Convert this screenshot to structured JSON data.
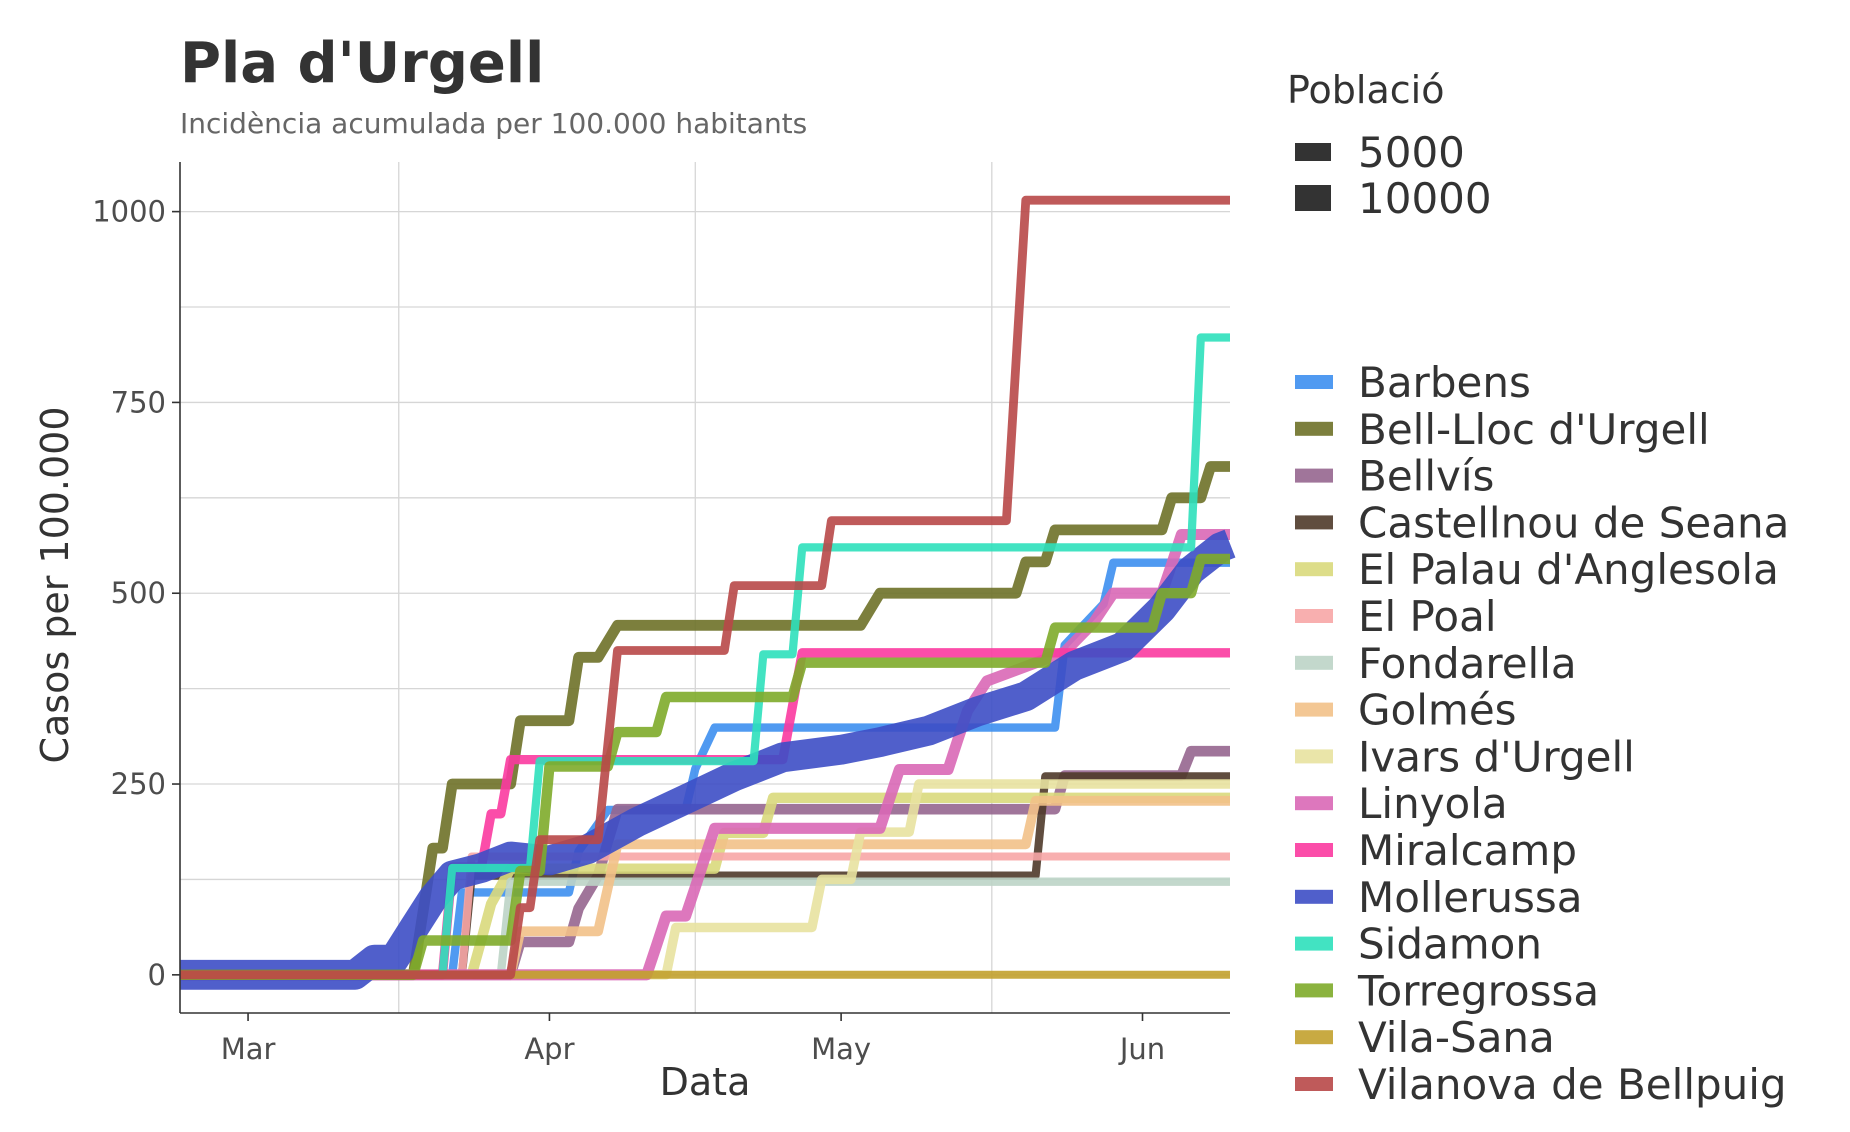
{
  "chart_data": {
    "type": "line",
    "title": "Pla d'Urgell",
    "subtitle": "Incidència acumulada per 100.000 habitants",
    "xlabel": "Data",
    "ylabel": "Casos per 100.000",
    "x_axis": {
      "type": "date",
      "range": [
        "2020-02-23",
        "2020-06-10"
      ],
      "ticks": [
        {
          "date": "2020-03-01",
          "label": "Mar"
        },
        {
          "date": "2020-04-01",
          "label": "Apr"
        },
        {
          "date": "2020-05-01",
          "label": "May"
        },
        {
          "date": "2020-06-01",
          "label": "Jun"
        }
      ]
    },
    "y_axis": {
      "range": [
        -50,
        1065
      ],
      "ticks": [
        0,
        250,
        500,
        750,
        1000
      ]
    },
    "grid": true,
    "size_legend": {
      "title": "Població",
      "entries": [
        "5000",
        "10000"
      ]
    },
    "legend_position": "right",
    "series": [
      {
        "name": "Barbens",
        "color": "#3d8ff0",
        "population": 870,
        "points": [
          [
            "2020-02-23",
            0
          ],
          [
            "2020-03-22",
            0
          ],
          [
            "2020-03-23",
            108
          ],
          [
            "2020-04-03",
            108
          ],
          [
            "2020-04-04",
            162
          ],
          [
            "2020-04-07",
            216
          ],
          [
            "2020-04-15",
            216
          ],
          [
            "2020-04-16",
            270
          ],
          [
            "2020-04-18",
            324
          ],
          [
            "2020-05-23",
            324
          ],
          [
            "2020-05-24",
            432
          ],
          [
            "2020-05-28",
            486
          ],
          [
            "2020-05-29",
            540
          ],
          [
            "2020-06-10",
            540
          ]
        ]
      },
      {
        "name": "Bell-Lloc d'Urgell",
        "color": "#6e7128",
        "population": 2400,
        "points": [
          [
            "2020-02-23",
            0
          ],
          [
            "2020-03-18",
            0
          ],
          [
            "2020-03-19",
            83
          ],
          [
            "2020-03-20",
            166
          ],
          [
            "2020-03-21",
            166
          ],
          [
            "2020-03-22",
            250
          ],
          [
            "2020-03-28",
            250
          ],
          [
            "2020-03-29",
            333
          ],
          [
            "2020-04-03",
            333
          ],
          [
            "2020-04-04",
            416
          ],
          [
            "2020-04-06",
            416
          ],
          [
            "2020-04-07",
            437
          ],
          [
            "2020-04-08",
            458
          ],
          [
            "2020-05-03",
            458
          ],
          [
            "2020-05-05",
            500
          ],
          [
            "2020-05-19",
            500
          ],
          [
            "2020-05-20",
            541
          ],
          [
            "2020-05-22",
            541
          ],
          [
            "2020-05-23",
            583
          ],
          [
            "2020-06-03",
            583
          ],
          [
            "2020-06-04",
            625
          ],
          [
            "2020-06-07",
            625
          ],
          [
            "2020-06-08",
            666
          ],
          [
            "2020-06-10",
            666
          ]
        ]
      },
      {
        "name": "Bellvís",
        "color": "#96668f",
        "population": 2300,
        "points": [
          [
            "2020-02-23",
            0
          ],
          [
            "2020-03-28",
            0
          ],
          [
            "2020-03-29",
            43
          ],
          [
            "2020-04-03",
            43
          ],
          [
            "2020-04-04",
            87
          ],
          [
            "2020-04-06",
            130
          ],
          [
            "2020-04-07",
            174
          ],
          [
            "2020-04-08",
            217
          ],
          [
            "2020-05-23",
            217
          ],
          [
            "2020-05-24",
            261
          ],
          [
            "2020-06-05",
            261
          ],
          [
            "2020-06-06",
            293
          ],
          [
            "2020-06-10",
            293
          ]
        ]
      },
      {
        "name": "Castellnou de Seana",
        "color": "#4f3a2a",
        "population": 760,
        "points": [
          [
            "2020-02-23",
            0
          ],
          [
            "2020-03-23",
            0
          ],
          [
            "2020-03-24",
            130
          ],
          [
            "2020-05-21",
            130
          ],
          [
            "2020-05-22",
            260
          ],
          [
            "2020-06-10",
            260
          ]
        ]
      },
      {
        "name": "El Palau d'Anglesola",
        "color": "#d9d97c",
        "population": 2150,
        "points": [
          [
            "2020-02-23",
            0
          ],
          [
            "2020-03-24",
            0
          ],
          [
            "2020-03-25",
            46
          ],
          [
            "2020-03-26",
            93
          ],
          [
            "2020-03-28",
            139
          ],
          [
            "2020-04-18",
            139
          ],
          [
            "2020-04-19",
            186
          ],
          [
            "2020-04-23",
            186
          ],
          [
            "2020-04-24",
            232
          ],
          [
            "2020-06-10",
            232
          ]
        ]
      },
      {
        "name": "El Poal",
        "color": "#f7a6a6",
        "population": 650,
        "points": [
          [
            "2020-02-23",
            0
          ],
          [
            "2020-03-23",
            0
          ],
          [
            "2020-03-24",
            155
          ],
          [
            "2020-06-10",
            155
          ]
        ]
      },
      {
        "name": "Fondarella",
        "color": "#bdd4c7",
        "population": 820,
        "points": [
          [
            "2020-02-23",
            0
          ],
          [
            "2020-03-27",
            0
          ],
          [
            "2020-03-28",
            122
          ],
          [
            "2020-06-10",
            122
          ]
        ]
      },
      {
        "name": "Golmés",
        "color": "#f2c188",
        "population": 1750,
        "points": [
          [
            "2020-02-23",
            0
          ],
          [
            "2020-03-28",
            0
          ],
          [
            "2020-03-29",
            57
          ],
          [
            "2020-04-06",
            57
          ],
          [
            "2020-04-07",
            114
          ],
          [
            "2020-04-08",
            171
          ],
          [
            "2020-05-20",
            171
          ],
          [
            "2020-05-21",
            228
          ],
          [
            "2020-06-10",
            228
          ]
        ]
      },
      {
        "name": "Ivars d'Urgell",
        "color": "#e8e2a0",
        "population": 1600,
        "points": [
          [
            "2020-02-23",
            0
          ],
          [
            "2020-04-13",
            0
          ],
          [
            "2020-04-14",
            62
          ],
          [
            "2020-04-28",
            62
          ],
          [
            "2020-04-29",
            125
          ],
          [
            "2020-05-02",
            125
          ],
          [
            "2020-05-03",
            187
          ],
          [
            "2020-05-08",
            187
          ],
          [
            "2020-05-09",
            250
          ],
          [
            "2020-06-10",
            250
          ]
        ]
      },
      {
        "name": "Linyola",
        "color": "#d968b6",
        "population": 2600,
        "points": [
          [
            "2020-02-23",
            0
          ],
          [
            "2020-04-11",
            0
          ],
          [
            "2020-04-12",
            38
          ],
          [
            "2020-04-13",
            77
          ],
          [
            "2020-04-15",
            77
          ],
          [
            "2020-04-16",
            115
          ],
          [
            "2020-04-17",
            154
          ],
          [
            "2020-04-18",
            192
          ],
          [
            "2020-05-05",
            192
          ],
          [
            "2020-05-06",
            231
          ],
          [
            "2020-05-07",
            269
          ],
          [
            "2020-05-12",
            269
          ],
          [
            "2020-05-13",
            308
          ],
          [
            "2020-05-14",
            346
          ],
          [
            "2020-05-16",
            385
          ],
          [
            "2020-05-24",
            423
          ],
          [
            "2020-05-27",
            462
          ],
          [
            "2020-05-29",
            500
          ],
          [
            "2020-06-03",
            500
          ],
          [
            "2020-06-04",
            538
          ],
          [
            "2020-06-05",
            577
          ],
          [
            "2020-06-10",
            577
          ]
        ]
      },
      {
        "name": "Miralcamp",
        "color": "#fb3aa0",
        "population": 1420,
        "points": [
          [
            "2020-02-23",
            0
          ],
          [
            "2020-03-21",
            0
          ],
          [
            "2020-03-22",
            141
          ],
          [
            "2020-03-25",
            141
          ],
          [
            "2020-03-26",
            211
          ],
          [
            "2020-03-27",
            211
          ],
          [
            "2020-03-28",
            282
          ],
          [
            "2020-04-25",
            282
          ],
          [
            "2020-04-26",
            352
          ],
          [
            "2020-04-27",
            422
          ],
          [
            "2020-06-10",
            422
          ]
        ]
      },
      {
        "name": "Mollerussa",
        "color": "#3d4ec5",
        "population": 14900,
        "points": [
          [
            "2020-02-23",
            0
          ],
          [
            "2020-03-12",
            0
          ],
          [
            "2020-03-14",
            20
          ],
          [
            "2020-03-16",
            20
          ],
          [
            "2020-03-18",
            60
          ],
          [
            "2020-03-20",
            100
          ],
          [
            "2020-03-22",
            130
          ],
          [
            "2020-03-25",
            140
          ],
          [
            "2020-03-28",
            155
          ],
          [
            "2020-04-01",
            150
          ],
          [
            "2020-04-05",
            165
          ],
          [
            "2020-04-10",
            200
          ],
          [
            "2020-04-15",
            230
          ],
          [
            "2020-04-20",
            260
          ],
          [
            "2020-04-25",
            285
          ],
          [
            "2020-05-01",
            295
          ],
          [
            "2020-05-05",
            305
          ],
          [
            "2020-05-10",
            320
          ],
          [
            "2020-05-15",
            345
          ],
          [
            "2020-05-20",
            365
          ],
          [
            "2020-05-25",
            405
          ],
          [
            "2020-05-30",
            430
          ],
          [
            "2020-06-03",
            480
          ],
          [
            "2020-06-06",
            530
          ],
          [
            "2020-06-09",
            560
          ],
          [
            "2020-06-10",
            565
          ]
        ]
      },
      {
        "name": "Sidamon",
        "color": "#2ee0bb",
        "population": 700,
        "points": [
          [
            "2020-02-23",
            0
          ],
          [
            "2020-03-21",
            0
          ],
          [
            "2020-03-22",
            140
          ],
          [
            "2020-03-30",
            140
          ],
          [
            "2020-03-31",
            280
          ],
          [
            "2020-04-22",
            280
          ],
          [
            "2020-04-23",
            420
          ],
          [
            "2020-04-26",
            420
          ],
          [
            "2020-04-27",
            560
          ],
          [
            "2020-06-06",
            560
          ],
          [
            "2020-06-07",
            835
          ],
          [
            "2020-06-10",
            835
          ]
        ]
      },
      {
        "name": "Torregrossa",
        "color": "#7eab2a",
        "population": 2200,
        "points": [
          [
            "2020-02-23",
            0
          ],
          [
            "2020-03-18",
            0
          ],
          [
            "2020-03-19",
            45
          ],
          [
            "2020-03-28",
            45
          ],
          [
            "2020-03-29",
            136
          ],
          [
            "2020-03-31",
            136
          ],
          [
            "2020-04-01",
            273
          ],
          [
            "2020-04-07",
            273
          ],
          [
            "2020-04-08",
            318
          ],
          [
            "2020-04-12",
            318
          ],
          [
            "2020-04-13",
            364
          ],
          [
            "2020-04-26",
            364
          ],
          [
            "2020-04-27",
            409
          ],
          [
            "2020-05-22",
            409
          ],
          [
            "2020-05-23",
            455
          ],
          [
            "2020-06-02",
            455
          ],
          [
            "2020-06-03",
            500
          ],
          [
            "2020-06-06",
            500
          ],
          [
            "2020-06-07",
            545
          ],
          [
            "2020-06-10",
            545
          ]
        ]
      },
      {
        "name": "Vila-Sana",
        "color": "#c2a12d",
        "population": 600,
        "points": [
          [
            "2020-02-23",
            0
          ],
          [
            "2020-06-10",
            0
          ]
        ]
      },
      {
        "name": "Vilanova de Bellpuig",
        "color": "#b84848",
        "population": 1130,
        "points": [
          [
            "2020-02-23",
            0
          ],
          [
            "2020-03-28",
            0
          ],
          [
            "2020-03-29",
            88
          ],
          [
            "2020-03-30",
            88
          ],
          [
            "2020-03-31",
            177
          ],
          [
            "2020-04-06",
            177
          ],
          [
            "2020-04-08",
            425
          ],
          [
            "2020-04-19",
            425
          ],
          [
            "2020-04-20",
            510
          ],
          [
            "2020-04-29",
            510
          ],
          [
            "2020-04-30",
            595
          ],
          [
            "2020-05-18",
            595
          ],
          [
            "2020-05-20",
            1015
          ],
          [
            "2020-06-10",
            1015
          ]
        ]
      }
    ]
  }
}
